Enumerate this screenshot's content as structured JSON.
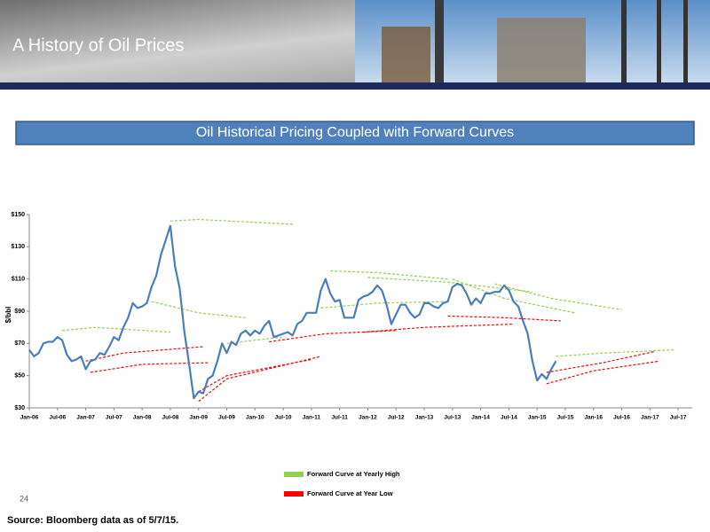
{
  "header": {
    "title": "A History of Oil Prices"
  },
  "chart_data": {
    "type": "line",
    "title": "Oil Historical Pricing Coupled with Forward Curves",
    "y_label": "$/bbl",
    "xlim": [
      "Jan-06",
      "Oct-17"
    ],
    "xticks": [
      "Jan-06",
      "Jul-06",
      "Jan-07",
      "Jul-07",
      "Jan-08",
      "Jul-08",
      "Jan-09",
      "Jul-09",
      "Jan-10",
      "Jul-10",
      "Jan-11",
      "Jul-11",
      "Jan-12",
      "Jul-12",
      "Jan-13",
      "Jul-13",
      "Jan-14",
      "Jul-14",
      "Jan-15",
      "Jul-15",
      "Jan-16",
      "Jul-16",
      "Jan-17",
      "Jul-17"
    ],
    "ylim": [
      30,
      150
    ],
    "yticks": [
      {
        "value": 30,
        "label": "$30"
      },
      {
        "value": 50,
        "label": "$50"
      },
      {
        "value": 70,
        "label": "$70"
      },
      {
        "value": 90,
        "label": "$90"
      },
      {
        "value": 110,
        "label": "$110"
      },
      {
        "value": 130,
        "label": "$130"
      },
      {
        "value": 150,
        "label": "$150"
      }
    ],
    "x": [
      "Jan-06",
      "Feb-06",
      "Mar-06",
      "Apr-06",
      "May-06",
      "Jun-06",
      "Jul-06",
      "Aug-06",
      "Sep-06",
      "Oct-06",
      "Nov-06",
      "Dec-06",
      "Jan-07",
      "Feb-07",
      "Mar-07",
      "Apr-07",
      "May-07",
      "Jun-07",
      "Jul-07",
      "Aug-07",
      "Sep-07",
      "Oct-07",
      "Nov-07",
      "Dec-07",
      "Jan-08",
      "Feb-08",
      "Mar-08",
      "Apr-08",
      "May-08",
      "Jun-08",
      "Jul-08",
      "Aug-08",
      "Sep-08",
      "Oct-08",
      "Nov-08",
      "Dec-08",
      "Jan-09",
      "Feb-09",
      "Mar-09",
      "Apr-09",
      "May-09",
      "Jun-09",
      "Jul-09",
      "Aug-09",
      "Sep-09",
      "Oct-09",
      "Nov-09",
      "Dec-09",
      "Jan-10",
      "Feb-10",
      "Mar-10",
      "Apr-10",
      "May-10",
      "Jun-10",
      "Jul-10",
      "Aug-10",
      "Sep-10",
      "Oct-10",
      "Nov-10",
      "Dec-10",
      "Jan-11",
      "Feb-11",
      "Mar-11",
      "Apr-11",
      "May-11",
      "Jun-11",
      "Jul-11",
      "Aug-11",
      "Sep-11",
      "Oct-11",
      "Nov-11",
      "Dec-11",
      "Jan-12",
      "Feb-12",
      "Mar-12",
      "Apr-12",
      "May-12",
      "Jun-12",
      "Jul-12",
      "Aug-12",
      "Sep-12",
      "Oct-12",
      "Nov-12",
      "Dec-12",
      "Jan-13",
      "Feb-13",
      "Mar-13",
      "Apr-13",
      "May-13",
      "Jun-13",
      "Jul-13",
      "Aug-13",
      "Sep-13",
      "Oct-13",
      "Nov-13",
      "Dec-13",
      "Jan-14",
      "Feb-14",
      "Mar-14",
      "Apr-14",
      "May-14",
      "Jun-14",
      "Jul-14",
      "Aug-14",
      "Sep-14",
      "Oct-14",
      "Nov-14",
      "Dec-14",
      "Jan-15",
      "Feb-15",
      "Mar-15",
      "Apr-15",
      "May-15"
    ],
    "series": [
      {
        "color": "#4a7ebb",
        "values": [
          66,
          62,
          64,
          70,
          71,
          71,
          74,
          72,
          63,
          59,
          60,
          62,
          54,
          59,
          60,
          64,
          63,
          68,
          74,
          72,
          80,
          86,
          95,
          92,
          93,
          95,
          105,
          112,
          125,
          134,
          143,
          118,
          104,
          77,
          57,
          36,
          40,
          39,
          48,
          50,
          59,
          70,
          64,
          71,
          69,
          76,
          78,
          75,
          78,
          76,
          81,
          84,
          74,
          75,
          76,
          77,
          75,
          82,
          84,
          89,
          89,
          89,
          103,
          110,
          101,
          96,
          97,
          86,
          86,
          86,
          97,
          99,
          100,
          102,
          106,
          103,
          94,
          82,
          88,
          94,
          94,
          89,
          86,
          88,
          95,
          95,
          93,
          92,
          95,
          96,
          105,
          107,
          106,
          101,
          94,
          98,
          95,
          101,
          101,
          102,
          102,
          106,
          103,
          96,
          93,
          84,
          76,
          59,
          47,
          51,
          48,
          54,
          59
        ]
      }
    ],
    "forward_curves": [
      {
        "name": "Forward Curve at Yearly High",
        "color": "#92d050",
        "curves": [
          {
            "x": [
              "Aug-06",
              "Mar-07",
              "Jul-08"
            ],
            "values": [
              78,
              80,
              77
            ]
          },
          {
            "x": [
              "Jul-08",
              "Jan-09",
              "Sep-10"
            ],
            "values": [
              146,
              147,
              144
            ]
          },
          {
            "x": [
              "Mar-08",
              "Jan-09",
              "Nov-09"
            ],
            "values": [
              96,
              89,
              86
            ]
          },
          {
            "x": [
              "Jul-09",
              "Jan-10",
              "Jul-10"
            ],
            "values": [
              70,
              72,
              74
            ]
          },
          {
            "x": [
              "Mar-11",
              "Mar-12",
              "May-13"
            ],
            "values": [
              92,
              95,
              96
            ]
          },
          {
            "x": [
              "May-11",
              "Mar-12",
              "Jun-13"
            ],
            "values": [
              115,
              114,
              110
            ]
          },
          {
            "x": [
              "Jan-12",
              "Jun-13",
              "Dec-14"
            ],
            "values": [
              111,
              108,
              102
            ]
          },
          {
            "x": [
              "Jul-13",
              "Jun-14",
              "Sep-15"
            ],
            "values": [
              110,
              98,
              89
            ]
          },
          {
            "x": [
              "Apr-14",
              "Apr-15",
              "Jul-16"
            ],
            "values": [
              107,
              98,
              91
            ]
          },
          {
            "x": [
              "May-15",
              "Mar-16",
              "Jun-17"
            ],
            "values": [
              62,
              64,
              66
            ]
          }
        ]
      },
      {
        "name": "Forward Curve at Year Low",
        "color": "#ff0000",
        "curves": [
          {
            "x": [
              "Feb-07",
              "Jan-08",
              "Mar-09"
            ],
            "values": [
              52,
              57,
              58
            ]
          },
          {
            "x": [
              "Jan-07",
              "Sep-07",
              "Feb-09"
            ],
            "values": [
              59,
              64,
              68
            ]
          },
          {
            "x": [
              "Jan-09",
              "Jul-09",
              "Mar-11"
            ],
            "values": [
              34,
              48,
              62
            ]
          },
          {
            "x": [
              "Jan-09",
              "Jul-09",
              "Jan-11"
            ],
            "values": [
              40,
              50,
              60
            ]
          },
          {
            "x": [
              "Apr-10",
              "Apr-11",
              "Jul-12"
            ],
            "values": [
              71,
              76,
              78
            ]
          },
          {
            "x": [
              "Dec-11",
              "Jan-13",
              "Aug-14"
            ],
            "values": [
              77,
              80,
              82
            ]
          },
          {
            "x": [
              "Jun-13",
              "Jun-14",
              "Jun-15"
            ],
            "values": [
              87,
              86,
              84
            ]
          },
          {
            "x": [
              "Mar-15",
              "Jan-16",
              "Mar-17"
            ],
            "values": [
              45,
              53,
              59
            ]
          },
          {
            "x": [
              "Mar-15",
              "Mar-16",
              "Feb-17"
            ],
            "values": [
              52,
              58,
              65
            ]
          }
        ]
      }
    ]
  },
  "page_number": "24",
  "source": "Source: Bloomberg data as of 5/7/15."
}
